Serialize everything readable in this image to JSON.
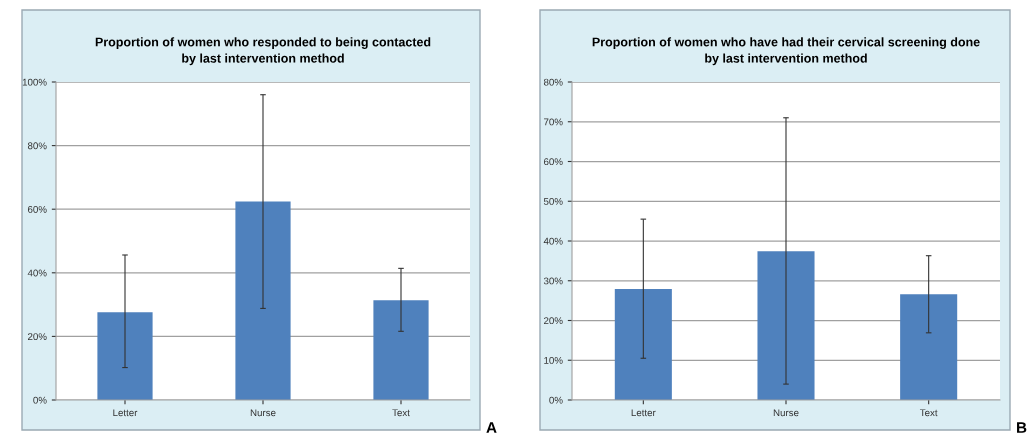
{
  "chart_data": [
    {
      "type": "bar",
      "title": "Proportion of women who responded to being contacted\nby last intervention method",
      "categories": [
        "Letter",
        "Nurse",
        "Text"
      ],
      "values": [
        27.6,
        62.4,
        31.4
      ],
      "color": "#4f81bd",
      "errors": [
        [
          10.2,
          45.6
        ],
        [
          28.8,
          96
        ],
        [
          21.6,
          41.4
        ]
      ],
      "ylim": [
        0,
        100
      ],
      "yticks": [
        {
          "value": 0,
          "label": "0%"
        },
        {
          "value": 20,
          "label": "20%"
        },
        {
          "value": 40,
          "label": "40%"
        },
        {
          "value": 60,
          "label": "60%"
        },
        {
          "value": 80,
          "label": "80%"
        },
        {
          "value": 100,
          "label": "100%"
        }
      ],
      "grid": "y",
      "annotations": [
        "A"
      ]
    },
    {
      "type": "bar",
      "title": "Proportion of women who have had their cervical screening done\nby last intervention method",
      "categories": [
        "Letter",
        "Nurse",
        "Text"
      ],
      "values": [
        27.9,
        37.4,
        26.6
      ],
      "color": "#4f81bd",
      "errors": [
        [
          10.5,
          45.5
        ],
        [
          4.0,
          71.0
        ],
        [
          16.9,
          36.3
        ]
      ],
      "ylim": [
        0,
        80
      ],
      "yticks": [
        {
          "value": 0,
          "label": "0%"
        },
        {
          "value": 10,
          "label": "10%"
        },
        {
          "value": 20,
          "label": "20%"
        },
        {
          "value": 30,
          "label": "30%"
        },
        {
          "value": 40,
          "label": "40%"
        },
        {
          "value": 50,
          "label": "50%"
        },
        {
          "value": 60,
          "label": "60%"
        },
        {
          "value": 70,
          "label": "70%"
        },
        {
          "value": 80,
          "label": "80%"
        }
      ],
      "grid": "y",
      "annotations": [
        "B"
      ]
    }
  ]
}
